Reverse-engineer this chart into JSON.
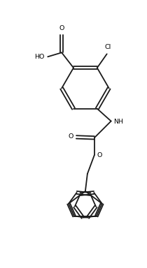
{
  "background_color": "#ffffff",
  "line_color": "#1a1a1a",
  "line_width": 1.3,
  "text_color": "#000000",
  "font_size": 6.8,
  "figsize": [
    2.1,
    3.84
  ],
  "dpi": 100,
  "xlim": [
    0.0,
    2.1
  ],
  "ylim": [
    0.0,
    3.84
  ]
}
